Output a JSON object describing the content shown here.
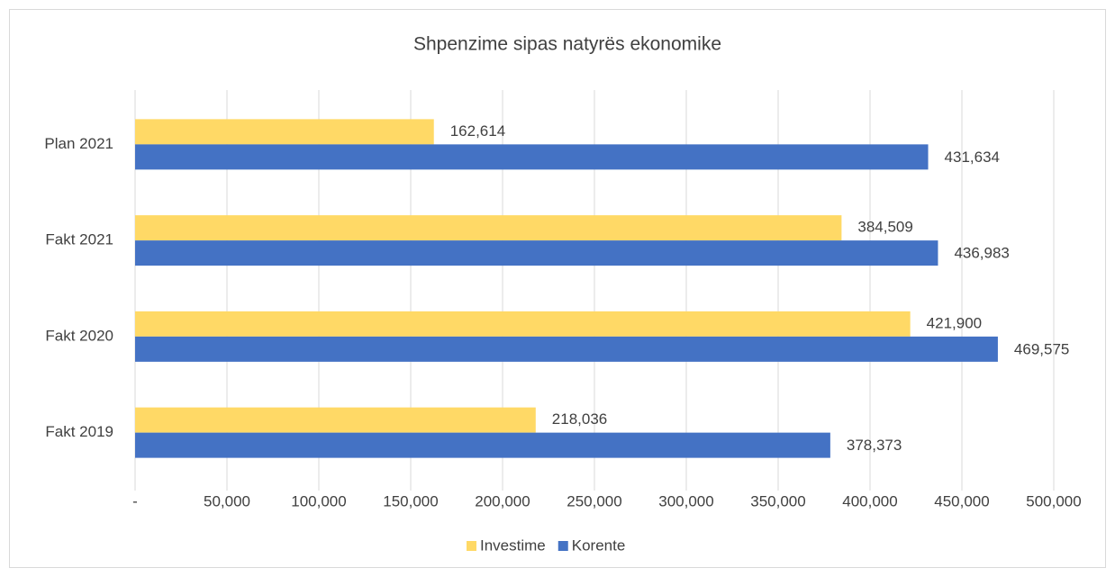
{
  "chart_data": {
    "type": "bar",
    "orientation": "horizontal",
    "title": "Shpenzime sipas natyrës ekonomike",
    "categories": [
      "Plan 2021",
      "Fakt 2021",
      "Fakt 2020",
      "Fakt 2019"
    ],
    "series": [
      {
        "name": "Investime",
        "color": "#ffd966",
        "values": [
          162614,
          384509,
          421900,
          218036
        ],
        "value_labels": [
          "162,614",
          "384,509",
          "421,900",
          "218,036"
        ]
      },
      {
        "name": "Korente",
        "color": "#4472c4",
        "values": [
          431634,
          436983,
          469575,
          378373
        ],
        "value_labels": [
          "431,634",
          "436,983",
          "469,575",
          "378,373"
        ]
      }
    ],
    "xlim": [
      0,
      500000
    ],
    "xticks": [
      {
        "value": 0,
        "label": "-"
      },
      {
        "value": 50000,
        "label": "50,000"
      },
      {
        "value": 100000,
        "label": "100,000"
      },
      {
        "value": 150000,
        "label": "150,000"
      },
      {
        "value": 200000,
        "label": "200,000"
      },
      {
        "value": 250000,
        "label": "250,000"
      },
      {
        "value": 300000,
        "label": "300,000"
      },
      {
        "value": 350000,
        "label": "350,000"
      },
      {
        "value": 400000,
        "label": "400,000"
      },
      {
        "value": 450000,
        "label": "450,000"
      },
      {
        "value": 500000,
        "label": "500,000"
      }
    ],
    "grid": true,
    "legend": "bottom"
  }
}
